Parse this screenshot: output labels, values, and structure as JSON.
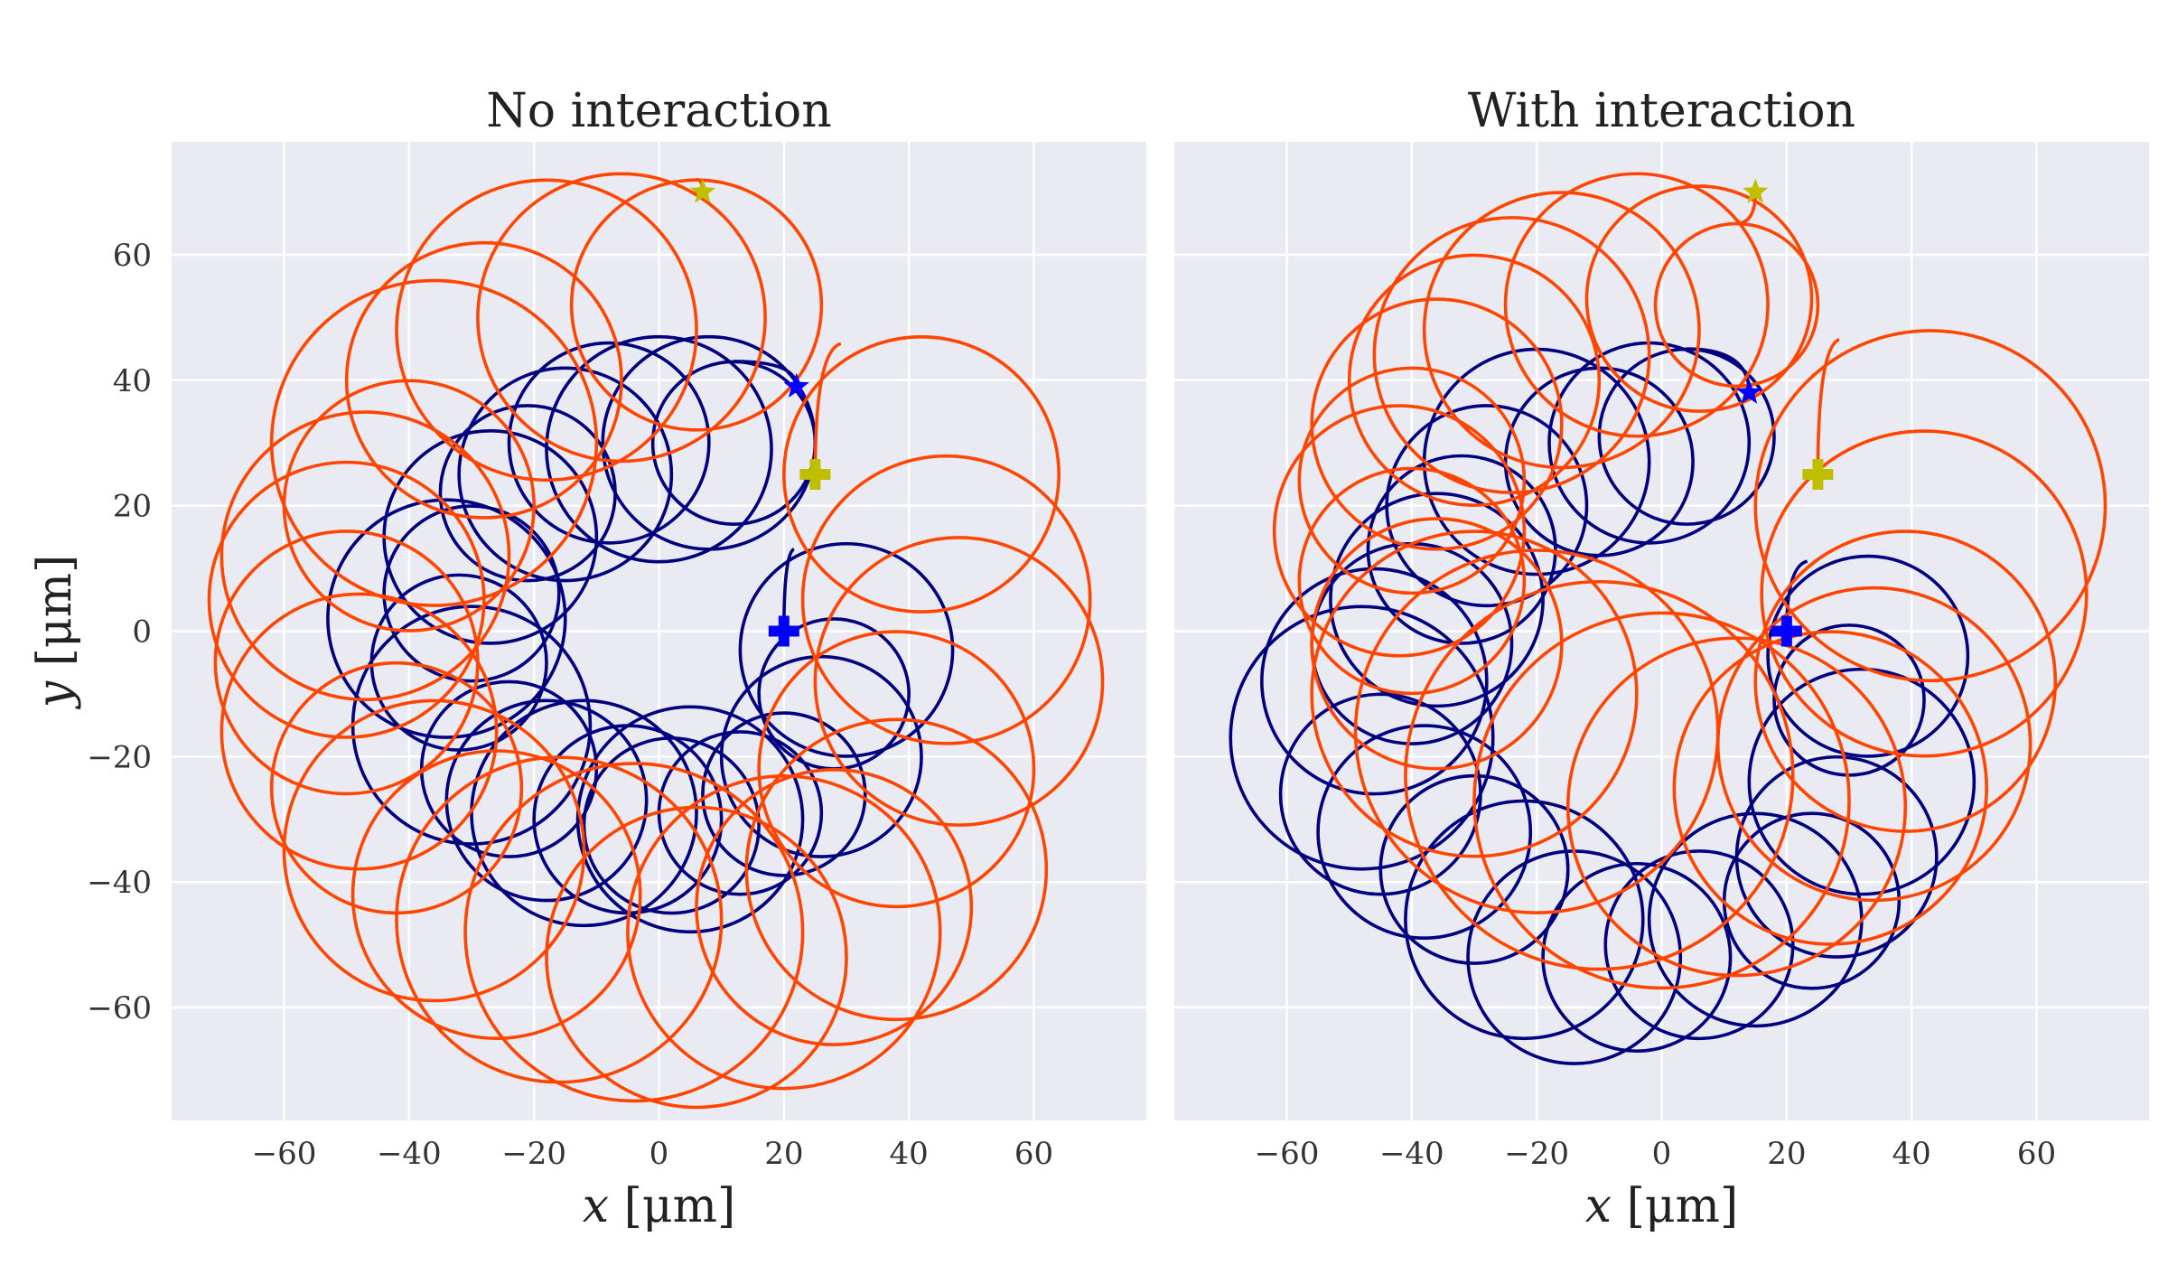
{
  "chart_data": [
    {
      "type": "line",
      "title": "No interaction",
      "xlabel": "x [μm]",
      "ylabel": "y [μm]",
      "xlim": [
        -78,
        78
      ],
      "ylim": [
        -78,
        78
      ],
      "xticks": [
        -60,
        -40,
        -20,
        0,
        20,
        40,
        60
      ],
      "yticks": [
        -60,
        -40,
        -20,
        0,
        20,
        40,
        60
      ],
      "grid": true,
      "background": "#eaeaf2",
      "series": [
        {
          "color": "#000080",
          "start": [
            20,
            0
          ],
          "end": [
            22,
            39
          ],
          "start_marker": "plus",
          "end_marker": "star",
          "circles": [
            [
              30,
              -3,
              17
            ],
            [
              28,
              -10,
              12
            ],
            [
              26,
              -20,
              16
            ],
            [
              20,
              -26,
              13
            ],
            [
              13,
              -29,
              13
            ],
            [
              5,
              -30,
              18
            ],
            [
              2,
              -31,
              14
            ],
            [
              -5,
              -30,
              15
            ],
            [
              -12,
              -29,
              18
            ],
            [
              -18,
              -27,
              16
            ],
            [
              -24,
              -22,
              14
            ],
            [
              -30,
              -15,
              19
            ],
            [
              -32,
              -5,
              14
            ],
            [
              -34,
              2,
              19
            ],
            [
              -30,
              6,
              14
            ],
            [
              -27,
              15,
              17
            ],
            [
              -21,
              22,
              14
            ],
            [
              -15,
              25,
              17
            ],
            [
              -8,
              30,
              16
            ],
            [
              0,
              29,
              18
            ],
            [
              8,
              30,
              17
            ],
            [
              12,
              30,
              13
            ]
          ]
        },
        {
          "color": "#ff4500",
          "start": [
            25,
            25
          ],
          "end": [
            7,
            70
          ],
          "start_marker": "plus",
          "end_marker": "star",
          "circles": [
            [
              42,
              25,
              22
            ],
            [
              46,
              5,
              23
            ],
            [
              48,
              -8,
              23
            ],
            [
              38,
              -22,
              22
            ],
            [
              38,
              -38,
              24
            ],
            [
              28,
              -44,
              22
            ],
            [
              20,
              -48,
              25
            ],
            [
              6,
              -52,
              24
            ],
            [
              -4,
              -48,
              27
            ],
            [
              -16,
              -46,
              26
            ],
            [
              -26,
              -42,
              23
            ],
            [
              -36,
              -35,
              24
            ],
            [
              -42,
              -25,
              20
            ],
            [
              -48,
              -16,
              22
            ],
            [
              -50,
              -5,
              21
            ],
            [
              -50,
              5,
              22
            ],
            [
              -47,
              12,
              23
            ],
            [
              -40,
              20,
              20
            ],
            [
              -36,
              30,
              26
            ],
            [
              -28,
              40,
              22
            ],
            [
              -18,
              48,
              24
            ],
            [
              -6,
              50,
              23
            ],
            [
              6,
              52,
              20
            ]
          ]
        }
      ]
    },
    {
      "type": "line",
      "title": "With interaction",
      "xlabel": "x [μm]",
      "ylabel": "",
      "xlim": [
        -78,
        78
      ],
      "ylim": [
        -78,
        78
      ],
      "xticks": [
        -60,
        -40,
        -20,
        0,
        20,
        40,
        60
      ],
      "yticks": [
        -60,
        -40,
        -20,
        0,
        20,
        40,
        60
      ],
      "grid": true,
      "background": "#eaeaf2",
      "series": [
        {
          "color": "#000080",
          "start": [
            20,
            0
          ],
          "end": [
            14,
            38
          ],
          "start_marker": "plus",
          "end_marker": "star",
          "circles": [
            [
              33,
              -4,
              16
            ],
            [
              30,
              -11,
              12
            ],
            [
              32,
              -24,
              18
            ],
            [
              28,
              -36,
              16
            ],
            [
              24,
              -43,
              14
            ],
            [
              15,
              -46,
              17
            ],
            [
              6,
              -50,
              15
            ],
            [
              -4,
              -52,
              15
            ],
            [
              -14,
              -52,
              17
            ],
            [
              -22,
              -46,
              19
            ],
            [
              -30,
              -38,
              15
            ],
            [
              -38,
              -32,
              17
            ],
            [
              -45,
              -26,
              16
            ],
            [
              -48,
              -17,
              21
            ],
            [
              -46,
              -8,
              18
            ],
            [
              -40,
              -2,
              16
            ],
            [
              -36,
              5,
              17
            ],
            [
              -32,
              13,
              15
            ],
            [
              -28,
              20,
              16
            ],
            [
              -20,
              27,
              18
            ],
            [
              -10,
              27,
              15
            ],
            [
              -2,
              30,
              16
            ],
            [
              4,
              31,
              14
            ]
          ]
        },
        {
          "color": "#ff4500",
          "start": [
            25,
            25
          ],
          "end": [
            15,
            70
          ],
          "start_marker": "plus",
          "end_marker": "star",
          "circles": [
            [
              43,
              20,
              28
            ],
            [
              42,
              6,
              26
            ],
            [
              39,
              -8,
              24
            ],
            [
              34,
              -18,
              25
            ],
            [
              27,
              -25,
              25
            ],
            [
              12,
              -28,
              27
            ],
            [
              0,
              -27,
              30
            ],
            [
              -10,
              -23,
              31
            ],
            [
              -20,
              -16,
              29
            ],
            [
              -30,
              -10,
              26
            ],
            [
              -36,
              -2,
              20
            ],
            [
              -40,
              8,
              18
            ],
            [
              -42,
              16,
              20
            ],
            [
              -40,
              24,
              18
            ],
            [
              -36,
              33,
              20
            ],
            [
              -30,
              40,
              20
            ],
            [
              -24,
              44,
              22
            ],
            [
              -16,
              48,
              22
            ],
            [
              -4,
              52,
              21
            ],
            [
              6,
              53,
              18
            ],
            [
              12,
              52,
              13
            ]
          ]
        }
      ]
    }
  ]
}
